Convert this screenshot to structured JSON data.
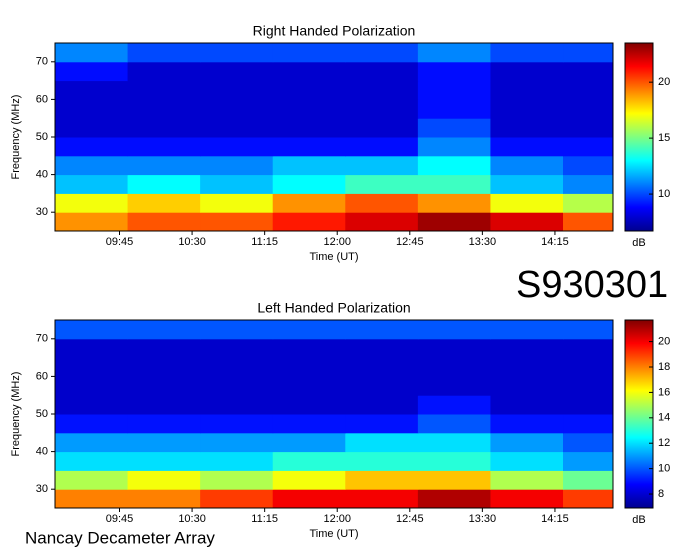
{
  "label": "S930301",
  "caption": "Nancay Decameter Array",
  "chart_data": [
    {
      "type": "heatmap",
      "title": "Right Handed Polarization",
      "xlabel": "Time (UT)",
      "ylabel": "Frequency (MHz)",
      "colorbar_label": "dB",
      "colormap": "jet",
      "xlim": [
        545,
        891
      ],
      "ylim": [
        25,
        75
      ],
      "xticks": [
        {
          "value": 585,
          "label": "09:45"
        },
        {
          "value": 630,
          "label": "10:30"
        },
        {
          "value": 675,
          "label": "11:15"
        },
        {
          "value": 720,
          "label": "12:00"
        },
        {
          "value": 765,
          "label": "12:45"
        },
        {
          "value": 810,
          "label": "13:30"
        },
        {
          "value": 855,
          "label": "14:15"
        }
      ],
      "yticks": [
        30,
        40,
        50,
        60,
        70
      ],
      "x_bins": [
        545,
        590,
        635,
        680,
        725,
        770,
        815,
        860,
        891
      ],
      "y_bins": [
        25,
        30,
        35,
        40,
        45,
        50,
        55,
        60,
        65,
        70,
        75
      ],
      "z": [
        [
          19,
          20,
          20,
          21,
          22,
          23,
          22,
          20
        ],
        [
          17,
          18,
          17,
          19,
          20,
          19,
          17,
          16
        ],
        [
          12,
          13,
          12,
          13,
          14,
          14,
          12,
          11
        ],
        [
          11,
          11,
          11,
          12,
          12,
          13,
          11,
          10
        ],
        [
          9,
          9,
          9,
          9,
          9,
          11,
          9,
          9
        ],
        [
          8,
          8,
          8,
          8,
          8,
          10,
          8,
          8
        ],
        [
          8,
          8,
          8,
          8,
          8,
          9,
          8,
          8
        ],
        [
          8,
          8,
          8,
          8,
          8,
          9,
          8,
          8
        ],
        [
          9,
          8,
          8,
          8,
          8,
          9,
          8,
          8
        ],
        [
          11,
          10,
          10,
          10,
          10,
          11,
          10,
          10
        ]
      ],
      "zlim": [
        6.7,
        23.5
      ],
      "zticks": [
        10,
        15,
        20
      ]
    },
    {
      "type": "heatmap",
      "title": "Left Handed Polarization",
      "xlabel": "Time (UT)",
      "ylabel": "Frequency (MHz)",
      "colorbar_label": "dB",
      "colormap": "jet",
      "xlim": [
        545,
        891
      ],
      "ylim": [
        25,
        75
      ],
      "xticks": [
        {
          "value": 585,
          "label": "09:45"
        },
        {
          "value": 630,
          "label": "10:30"
        },
        {
          "value": 675,
          "label": "11:15"
        },
        {
          "value": 720,
          "label": "12:00"
        },
        {
          "value": 765,
          "label": "12:45"
        },
        {
          "value": 810,
          "label": "13:30"
        },
        {
          "value": 855,
          "label": "14:15"
        }
      ],
      "yticks": [
        30,
        40,
        50,
        60,
        70
      ],
      "x_bins": [
        545,
        590,
        635,
        680,
        725,
        770,
        815,
        860,
        891
      ],
      "y_bins": [
        25,
        30,
        35,
        40,
        45,
        50,
        55,
        60,
        65,
        70,
        75
      ],
      "z": [
        [
          18,
          18,
          19,
          20,
          20,
          21,
          20,
          19
        ],
        [
          15,
          16,
          15,
          16,
          17,
          17,
          15,
          14
        ],
        [
          12,
          12,
          12,
          13,
          13,
          13,
          12,
          11
        ],
        [
          11,
          11,
          11,
          11,
          12,
          12,
          11,
          10
        ],
        [
          9,
          9,
          9,
          9,
          9,
          10,
          9,
          9
        ],
        [
          8,
          8,
          8,
          8,
          8,
          9,
          8,
          8
        ],
        [
          8,
          8,
          8,
          8,
          8,
          8,
          8,
          8
        ],
        [
          8,
          8,
          8,
          8,
          8,
          8,
          8,
          8
        ],
        [
          8,
          8,
          8,
          8,
          8,
          8,
          8,
          8
        ],
        [
          10,
          10,
          10,
          10,
          10,
          10,
          10,
          10
        ]
      ],
      "zlim": [
        6.9,
        21.7
      ],
      "zticks": [
        8,
        10,
        12,
        14,
        16,
        18,
        20
      ]
    }
  ]
}
